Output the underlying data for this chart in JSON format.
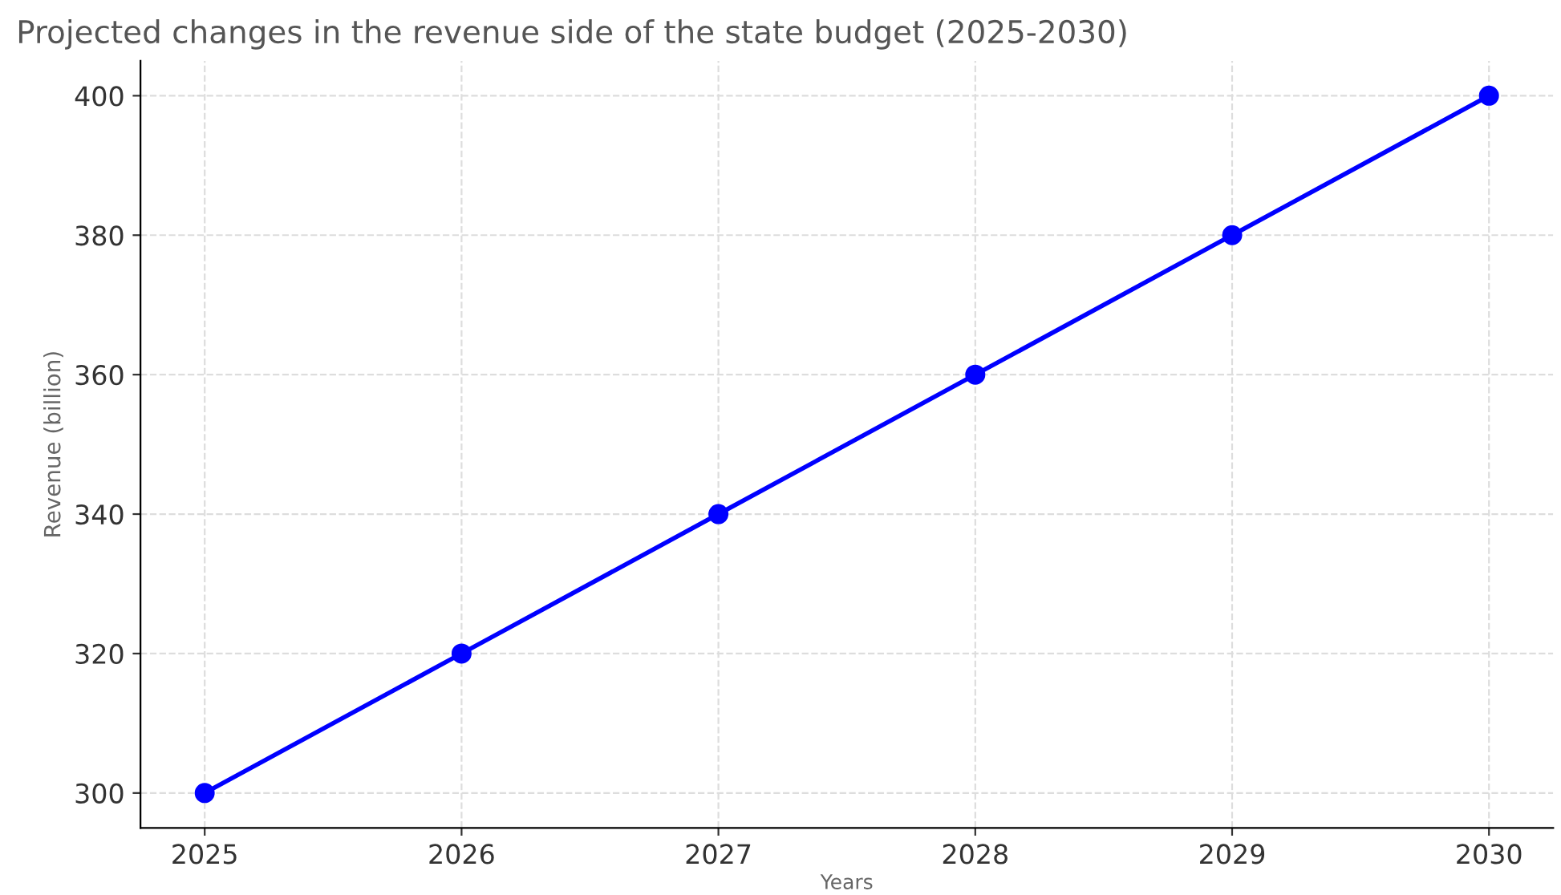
{
  "chart_data": {
    "type": "line",
    "title": "Projected changes in the revenue side of the state budget (2025-2030)",
    "xlabel": "Years",
    "ylabel": "Revenue (billion)",
    "x": [
      2025,
      2026,
      2027,
      2028,
      2029,
      2030
    ],
    "series": [
      {
        "color": "#0000ff",
        "values": [
          300,
          320,
          340,
          360,
          380,
          400
        ]
      }
    ],
    "xlim": [
      2024.75,
      2030.25
    ],
    "xticks": [
      2025,
      2026,
      2027,
      2028,
      2029,
      2030
    ],
    "ylim": [
      295,
      405
    ],
    "yticks": [
      300,
      320,
      340,
      360,
      380,
      400
    ],
    "grid": true,
    "marker": "circle",
    "line_style": "solid",
    "legend": false
  }
}
